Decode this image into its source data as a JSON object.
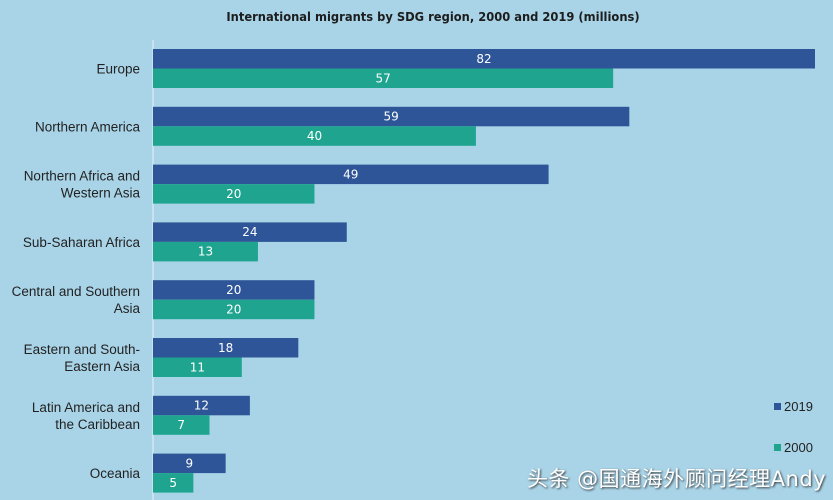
{
  "chart_data": {
    "type": "bar",
    "orientation": "horizontal",
    "title": "International migrants by SDG region, 2000 and 2019 (millions)",
    "categories": [
      "Europe",
      "Northern America",
      "Northern Africa and Western Asia",
      "Sub-Saharan Africa",
      "Central and Southern Asia",
      "Eastern and South-Eastern Asia",
      "Latin America and the Caribbean",
      "Oceania"
    ],
    "category_lines": [
      [
        "Europe"
      ],
      [
        "Northern America"
      ],
      [
        "Northern Africa and",
        "Western Asia"
      ],
      [
        "Sub-Saharan Africa"
      ],
      [
        "Central and Southern",
        "Asia"
      ],
      [
        "Eastern and South-",
        "Eastern Asia"
      ],
      [
        "Latin America and",
        "the Caribbean"
      ],
      [
        "Oceania"
      ]
    ],
    "series": [
      {
        "name": "2019",
        "color": "#2e5597",
        "values": [
          82,
          59,
          49,
          24,
          20,
          18,
          12,
          9
        ]
      },
      {
        "name": "2000",
        "color": "#1fa58f",
        "values": [
          57,
          40,
          20,
          13,
          20,
          11,
          7,
          5
        ]
      }
    ],
    "xlim": [
      0,
      82
    ],
    "grid": false,
    "legend": "bottom-right",
    "data_labels": true
  },
  "watermark": "头条 @国通海外顾问经理Andy",
  "colors": {
    "background": "#a9d4e8"
  }
}
